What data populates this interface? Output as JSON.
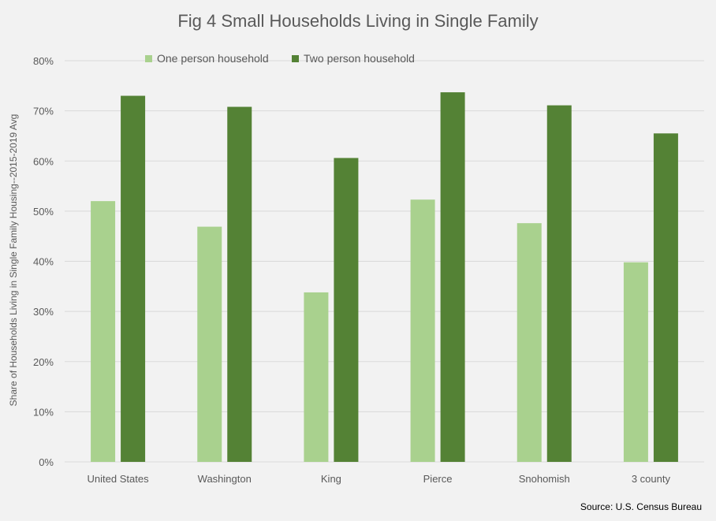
{
  "chart_data": {
    "type": "bar",
    "title": "Fig 4 Small Households Living in Single Family",
    "xlabel": "",
    "ylabel": "Share of Households Living in Single Family Housing--2015-2019 Avg",
    "categories": [
      "United States",
      "Washington",
      "King",
      "Pierce",
      "Snohomish",
      "3 county"
    ],
    "series": [
      {
        "name": "One person household",
        "values": [
          52.0,
          46.9,
          33.8,
          52.3,
          47.6,
          39.8
        ],
        "color": "#a9d18e"
      },
      {
        "name": "Two person household",
        "values": [
          73.0,
          70.8,
          60.6,
          73.7,
          71.1,
          65.5
        ],
        "color": "#548235"
      }
    ],
    "ylim": [
      0,
      80
    ],
    "yticks": [
      "0%",
      "10%",
      "20%",
      "30%",
      "40%",
      "50%",
      "60%",
      "70%",
      "80%"
    ],
    "grid": true,
    "legend_position": "top"
  },
  "source_note": "Source: U.S. Census Bureau"
}
